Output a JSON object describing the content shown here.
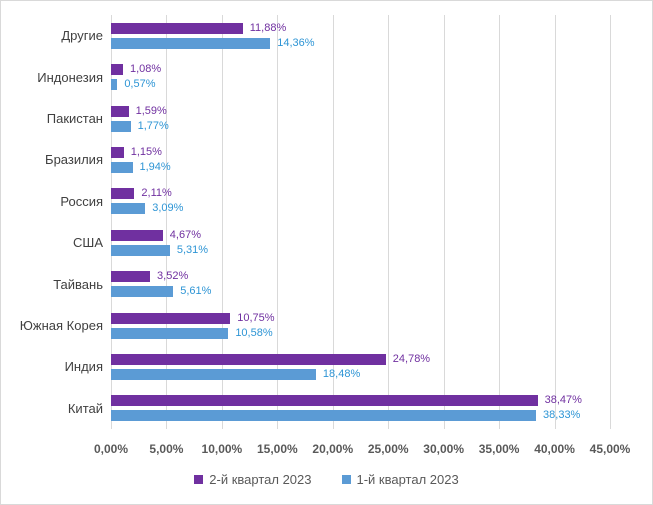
{
  "chart_data": {
    "type": "bar",
    "orientation": "horizontal",
    "title": "",
    "categories": [
      "Другие",
      "Индонезия",
      "Пакистан",
      "Бразилия",
      "Россия",
      "США",
      "Тайвань",
      "Южная Корея",
      "Индия",
      "Китай"
    ],
    "series": [
      {
        "name": "2-й квартал 2023",
        "color": "#7030A0",
        "label_color": "#7030A0",
        "values": [
          11.88,
          1.08,
          1.59,
          1.15,
          2.11,
          4.67,
          3.52,
          10.75,
          24.78,
          38.47
        ],
        "labels": [
          "11,88%",
          "1,08%",
          "1,59%",
          "1,15%",
          "2,11%",
          "4,67%",
          "3,52%",
          "10,75%",
          "24,78%",
          "38,47%"
        ]
      },
      {
        "name": "1-й квартал 2023",
        "color": "#5B9BD5",
        "label_color": "#2E95D5",
        "values": [
          14.36,
          0.57,
          1.77,
          1.94,
          3.09,
          5.31,
          5.61,
          10.58,
          18.48,
          38.33
        ],
        "labels": [
          "14,36%",
          "0,57%",
          "1,77%",
          "1,94%",
          "3,09%",
          "5,31%",
          "5,61%",
          "10,58%",
          "18,48%",
          "38,33%"
        ]
      }
    ],
    "x_axis": {
      "ticks": [
        "0,00%",
        "5,00%",
        "10,00%",
        "15,00%",
        "20,00%",
        "25,00%",
        "30,00%",
        "35,00%",
        "40,00%",
        "45,00%"
      ],
      "min": 0,
      "max": 45
    },
    "grid": true,
    "legend_position": "bottom"
  },
  "colors": {
    "background": "#FFFFFF",
    "border": "#D9D9D9",
    "gridline": "#D9D9D9",
    "axis_text": "#595959",
    "category_text": "#404040",
    "legend_text": "#595959"
  }
}
